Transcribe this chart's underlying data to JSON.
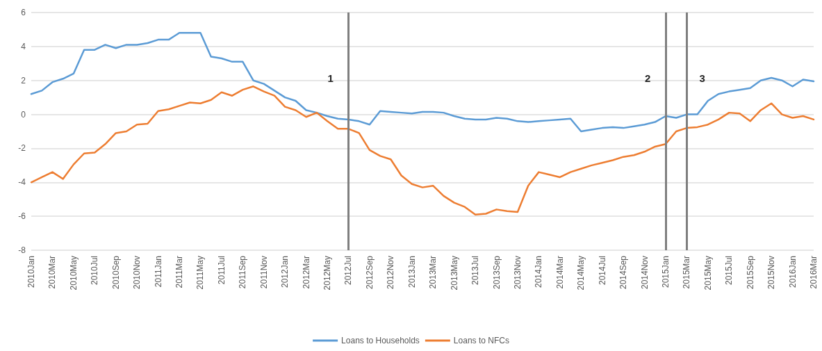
{
  "chart_data": {
    "type": "line",
    "categories": [
      "2010Jan",
      null,
      "2010Mar",
      null,
      "2010May",
      null,
      "2010Jul",
      null,
      "2010Sep",
      null,
      "2010Nov",
      null,
      "2011Jan",
      null,
      "2011Mar",
      null,
      "2011May",
      null,
      "2011Jul",
      null,
      "2011Sep",
      null,
      "2011Nov",
      null,
      "2012Jan",
      null,
      "2012Mar",
      null,
      "2012May",
      null,
      "2012Jul",
      null,
      "2012Sep",
      null,
      "2012Nov",
      null,
      "2013Jan",
      null,
      "2013Mar",
      null,
      "2013May",
      null,
      "2013Jul",
      null,
      "2013Sep",
      null,
      "2013Nov",
      null,
      "2014Jan",
      null,
      "2014Mar",
      null,
      "2014May",
      null,
      "2014Jul",
      null,
      "2014Sep",
      null,
      "2014Nov",
      null,
      "2015Jan",
      null,
      "2015Mar",
      null,
      "2015May",
      null,
      "2015Jul",
      null,
      "2015Sep",
      null,
      "2015Nov",
      null,
      "2016Jan",
      null,
      "2016Mar"
    ],
    "series": [
      {
        "name": "Loans to Households",
        "color": "#5b9bd5",
        "values": [
          1.2,
          1.4,
          1.9,
          2.1,
          2.4,
          3.8,
          3.8,
          4.1,
          3.9,
          4.1,
          4.1,
          4.2,
          4.4,
          4.4,
          4.8,
          4.8,
          4.8,
          3.4,
          3.3,
          3.1,
          3.1,
          2.0,
          1.8,
          1.4,
          1.0,
          0.8,
          0.25,
          0.1,
          -0.1,
          -0.25,
          -0.3,
          -0.4,
          -0.6,
          0.2,
          0.15,
          0.1,
          0.05,
          0.15,
          0.15,
          0.1,
          -0.1,
          -0.25,
          -0.3,
          -0.3,
          -0.2,
          -0.25,
          -0.4,
          -0.45,
          -0.4,
          -0.35,
          -0.3,
          -0.25,
          -1.0,
          -0.9,
          -0.8,
          -0.75,
          -0.8,
          -0.7,
          -0.6,
          -0.45,
          -0.1,
          -0.2,
          0.0,
          0.0,
          0.8,
          1.2,
          1.35,
          1.45,
          1.55,
          2.0,
          2.15,
          2.0,
          1.65,
          2.05,
          1.95
        ]
      },
      {
        "name": "Loans to NFCs",
        "color": "#ed7d31",
        "values": [
          -4.0,
          -3.7,
          -3.4,
          -3.8,
          -2.95,
          -2.3,
          -2.25,
          -1.75,
          -1.1,
          -1.0,
          -0.6,
          -0.55,
          0.2,
          0.3,
          0.5,
          0.7,
          0.65,
          0.85,
          1.3,
          1.1,
          1.45,
          1.65,
          1.35,
          1.1,
          0.45,
          0.25,
          -0.15,
          0.1,
          -0.4,
          -0.85,
          -0.85,
          -1.1,
          -2.1,
          -2.45,
          -2.65,
          -3.6,
          -4.1,
          -4.3,
          -4.2,
          -4.8,
          -5.2,
          -5.45,
          -5.9,
          -5.85,
          -5.6,
          -5.7,
          -5.75,
          -4.2,
          -3.4,
          -3.55,
          -3.7,
          -3.4,
          -3.2,
          -3.0,
          -2.85,
          -2.7,
          -2.5,
          -2.4,
          -2.2,
          -1.9,
          -1.75,
          -1.0,
          -0.8,
          -0.75,
          -0.6,
          -0.3,
          0.1,
          0.05,
          -0.4,
          0.25,
          0.65,
          0.0,
          -0.2,
          -0.1,
          -0.3
        ]
      }
    ],
    "ylim": [
      -8,
      6
    ],
    "yticks": [
      -8,
      -6,
      -4,
      -2,
      0,
      2,
      4,
      6
    ],
    "grid": "y",
    "legend": "bottom",
    "marker": "none",
    "line_style": "solid",
    "ref_lines": [
      {
        "axis": "x",
        "value": "2012Jul",
        "label": "1",
        "color": "#7f7f7f"
      },
      {
        "axis": "x",
        "value": "2015Jan",
        "label": "2",
        "color": "#7f7f7f"
      },
      {
        "axis": "x",
        "value": "2015Mar",
        "label": "3",
        "color": "#7f7f7f"
      }
    ]
  }
}
